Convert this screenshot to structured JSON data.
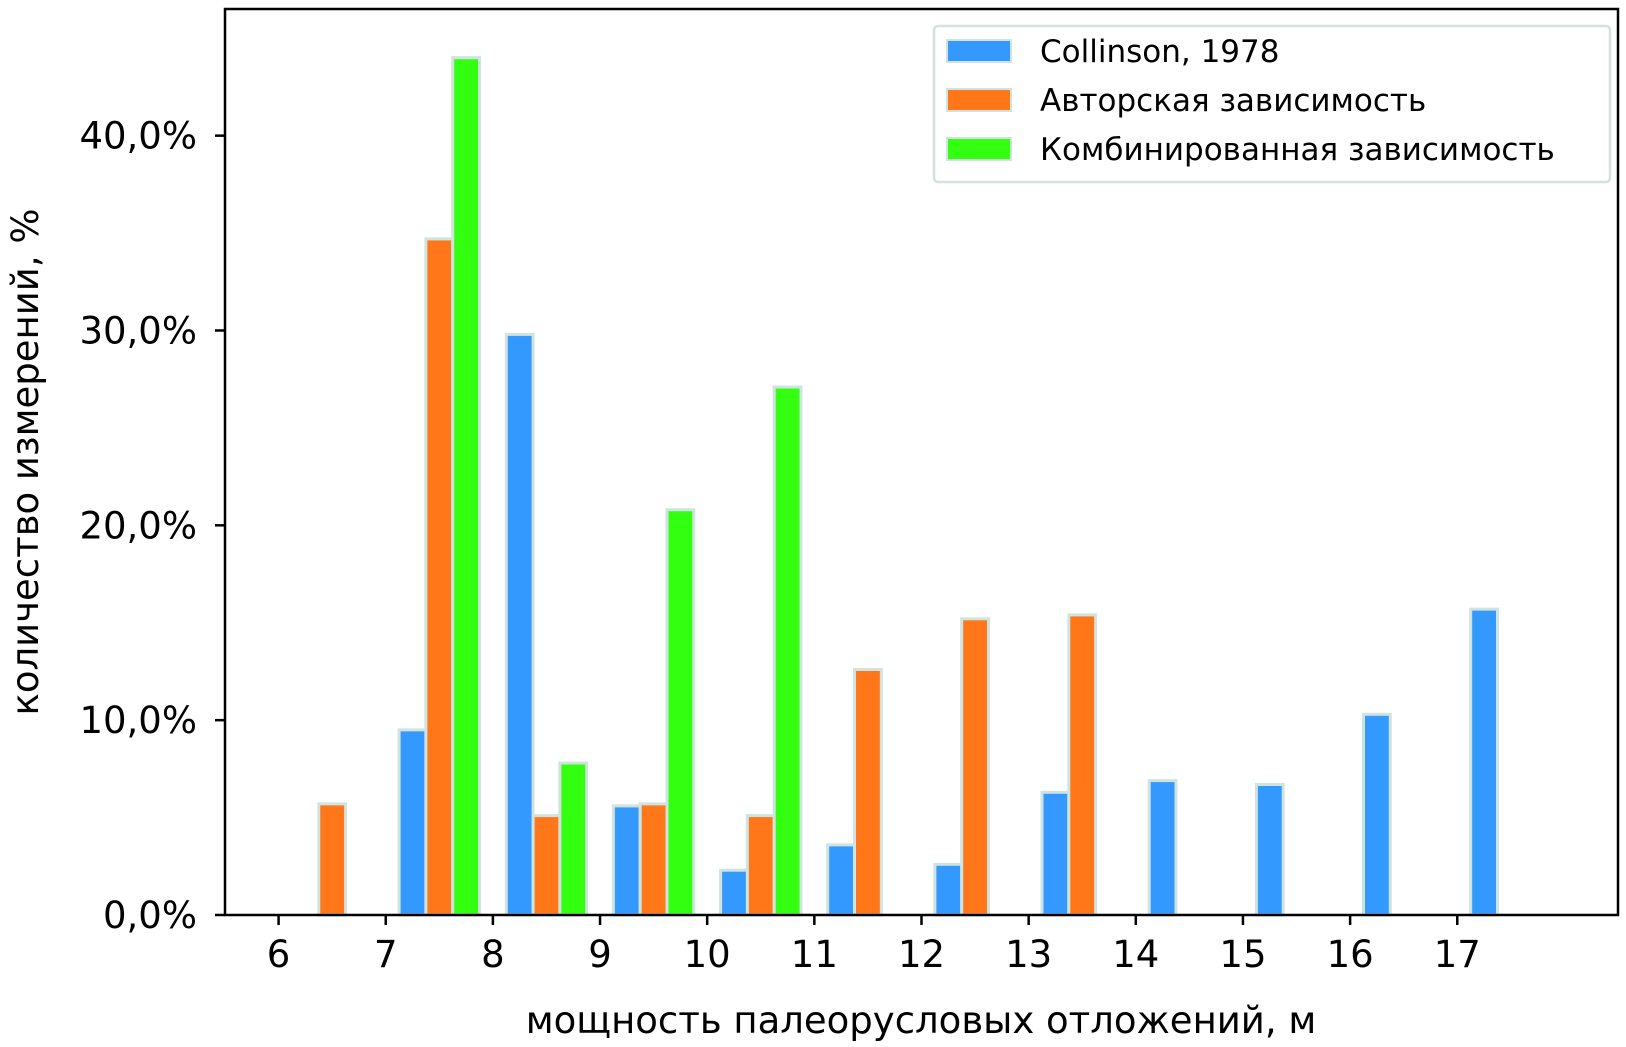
{
  "chart_data": {
    "type": "bar",
    "title": "",
    "xlabel": "мощность палеорусловых отложений, м",
    "ylabel": "количество измерений, %",
    "x_ticks": [
      "6",
      "7",
      "8",
      "9",
      "10",
      "11",
      "12",
      "13",
      "14",
      "15",
      "16",
      "17"
    ],
    "y_ticks": [
      "0,0%",
      "10,0%",
      "20,0%",
      "30,0%",
      "40,0%"
    ],
    "xlim": [
      5.5,
      18.5
    ],
    "ylim": [
      0,
      46.5
    ],
    "bar_width": 0.25,
    "grid": false,
    "legend_position": "top-right",
    "series": [
      {
        "name": "Collinson, 1978",
        "color": "#3399ff",
        "x": [
          7.25,
          8.25,
          9.25,
          10.25,
          11.25,
          12.25,
          13.25,
          14.25,
          15.25,
          16.25,
          17.25
        ],
        "values": [
          9.5,
          29.8,
          5.6,
          2.3,
          3.6,
          2.6,
          6.3,
          6.9,
          6.7,
          10.3,
          15.7
        ]
      },
      {
        "name": "Авторская зависимость",
        "color": "#ff7719",
        "x": [
          6.5,
          7.5,
          8.5,
          9.5,
          10.5,
          11.5,
          12.5,
          13.5
        ],
        "values": [
          5.7,
          34.7,
          5.1,
          5.7,
          5.1,
          12.6,
          15.2,
          15.4
        ]
      },
      {
        "name": "Комбинированная зависимость",
        "color": "#33ff11",
        "x": [
          7.75,
          8.75,
          9.75,
          10.75
        ],
        "values": [
          44.0,
          7.8,
          20.8,
          27.1
        ]
      }
    ]
  }
}
